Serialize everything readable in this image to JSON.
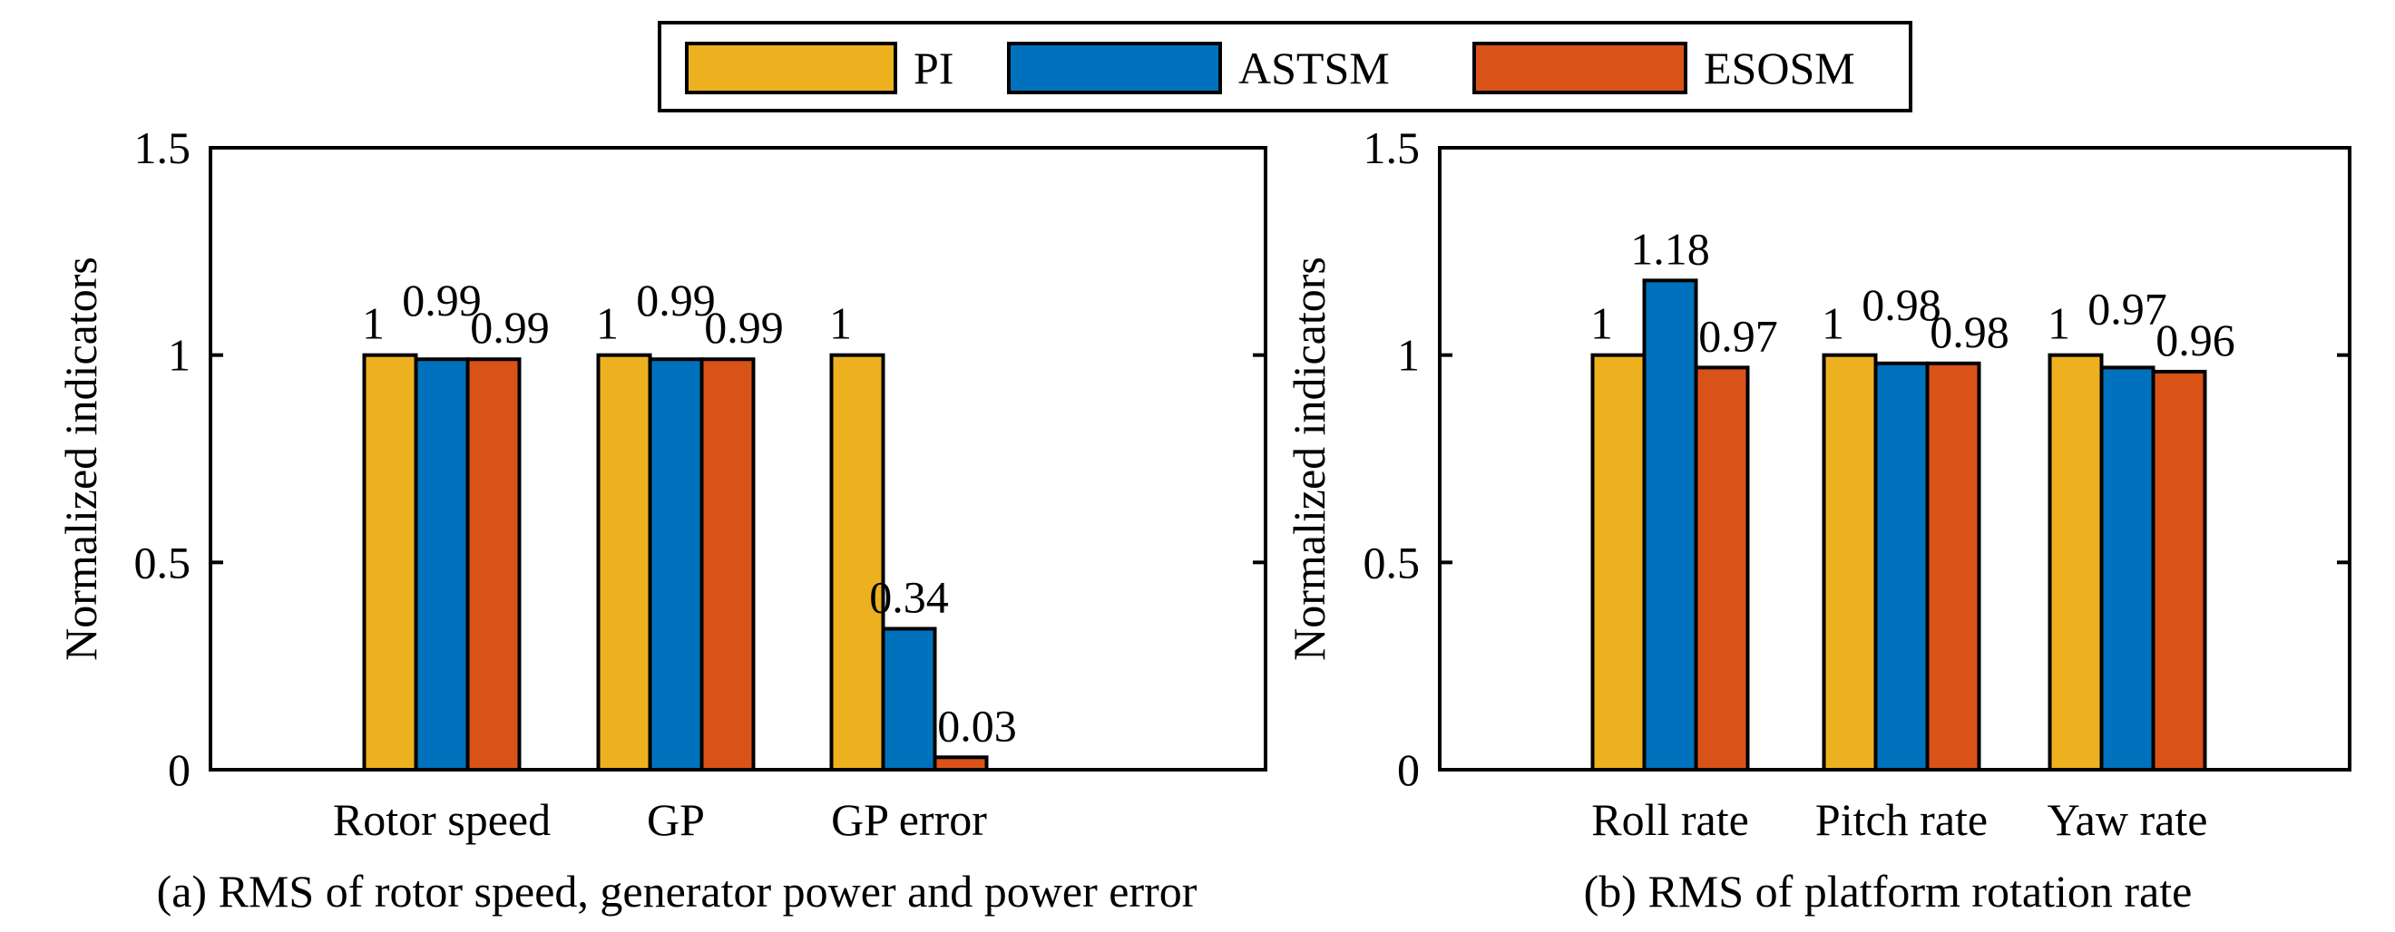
{
  "colors": {
    "PI": "#EDB120",
    "ASTSM": "#0072BD",
    "ESOSM": "#D95319"
  },
  "legend": {
    "entries": [
      "PI",
      "ASTSM",
      "ESOSM"
    ]
  },
  "chart_data": [
    {
      "type": "bar",
      "caption": "(a) RMS of rotor speed, generator power and power error",
      "ylabel": "Normalized indicators",
      "ylim": [
        0,
        1.5
      ],
      "yticks": [
        "0",
        "0.5",
        "1",
        "1.5"
      ],
      "categories": [
        "Rotor speed",
        "GP",
        "GP error"
      ],
      "series": [
        {
          "name": "PI",
          "values": [
            1,
            1,
            1
          ],
          "labels": [
            "1",
            "1",
            "1"
          ]
        },
        {
          "name": "ASTSM",
          "values": [
            0.99,
            0.99,
            0.34
          ],
          "labels": [
            "0.99",
            "0.99",
            "0.34"
          ]
        },
        {
          "name": "ESOSM",
          "values": [
            0.99,
            0.99,
            0.03
          ],
          "labels": [
            "0.99",
            "0.99",
            "0.03"
          ]
        }
      ]
    },
    {
      "type": "bar",
      "caption": "(b) RMS of platform rotation rate",
      "ylabel": "Normalized indicators",
      "ylim": [
        0,
        1.5
      ],
      "yticks": [
        "0",
        "0.5",
        "1",
        "1.5"
      ],
      "categories": [
        "Roll rate",
        "Pitch rate",
        "Yaw rate"
      ],
      "series": [
        {
          "name": "PI",
          "values": [
            1,
            1,
            1
          ],
          "labels": [
            "1",
            "1",
            "1"
          ]
        },
        {
          "name": "ASTSM",
          "values": [
            1.18,
            0.98,
            0.97
          ],
          "labels": [
            "1.18",
            "0.98",
            "0.97"
          ]
        },
        {
          "name": "ESOSM",
          "values": [
            0.97,
            0.98,
            0.96
          ],
          "labels": [
            "0.97",
            "0.98",
            "0.96"
          ]
        }
      ]
    }
  ]
}
